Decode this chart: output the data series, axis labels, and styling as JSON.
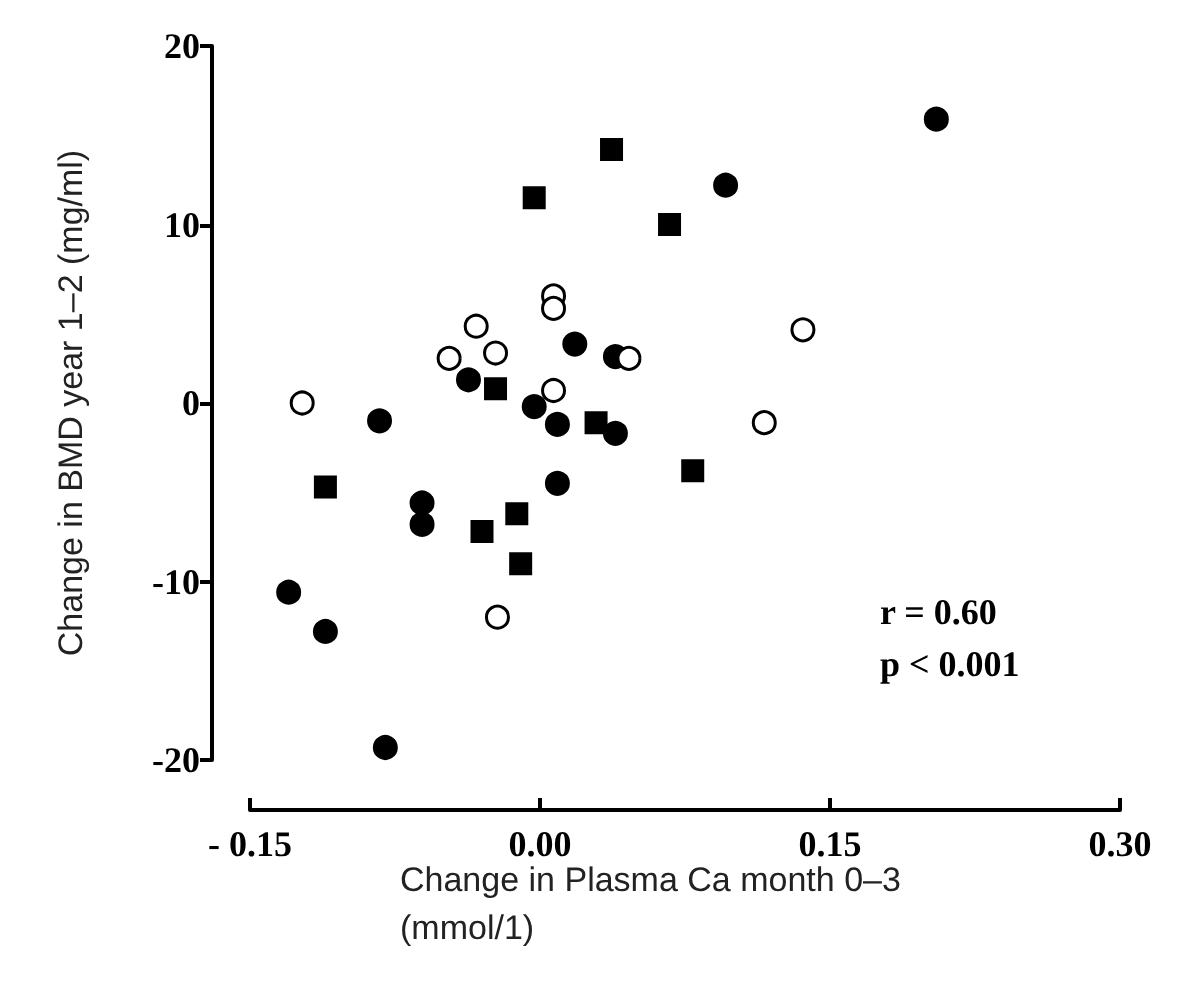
{
  "chart_data": {
    "type": "scatter",
    "xlabel": "Change in Plasma Ca month 0–3 (mmol/1)",
    "ylabel": "Change in BMD year 1–2 (mg/ml)",
    "annotations": [
      "r = 0.60",
      "p < 0.001"
    ],
    "series": [
      {
        "marker": "circle",
        "color": "#000000",
        "x": [
          0.205,
          0.096,
          0.018,
          0.039,
          -0.037,
          -0.083,
          -0.003,
          0.009,
          0.039,
          -0.061,
          -0.061,
          0.009,
          -0.13,
          -0.111,
          -0.08
        ],
        "values": [
          15.9,
          12.2,
          3.3,
          2.6,
          1.3,
          -1.0,
          -0.2,
          -1.2,
          -1.7,
          -5.6,
          -6.8,
          -4.5,
          -10.6,
          -12.8,
          -19.3
        ]
      },
      {
        "marker": "square",
        "color": "#000000",
        "x": [
          0.037,
          -0.003,
          0.067,
          -0.023,
          0.029,
          0.079,
          -0.111,
          -0.012,
          -0.03,
          -0.01
        ],
        "values": [
          14.2,
          11.5,
          10.0,
          0.8,
          -1.1,
          -3.8,
          -4.7,
          -6.2,
          -7.2,
          -9.0
        ]
      },
      {
        "marker": "circle",
        "color": "#ffffff",
        "x": [
          0.007,
          0.007,
          -0.033,
          -0.023,
          -0.047,
          0.046,
          0.007,
          -0.123,
          0.136,
          0.116,
          -0.022
        ],
        "values": [
          6.0,
          5.3,
          4.3,
          2.8,
          2.5,
          2.5,
          0.7,
          0.0,
          4.1,
          -1.1,
          -12.0
        ]
      }
    ],
    "xlim": [
      -0.15,
      0.3
    ],
    "xticks": [
      {
        "value": -0.15,
        "label": "- 0.15"
      },
      {
        "value": 0,
        "label": "0.00"
      },
      {
        "value": 0.15,
        "label": "0.15"
      },
      {
        "value": 0.3,
        "label": "0.30"
      }
    ],
    "ylim": [
      -20,
      20
    ],
    "yticks": [
      -20,
      -10,
      0,
      10,
      20
    ],
    "grid": false
  }
}
